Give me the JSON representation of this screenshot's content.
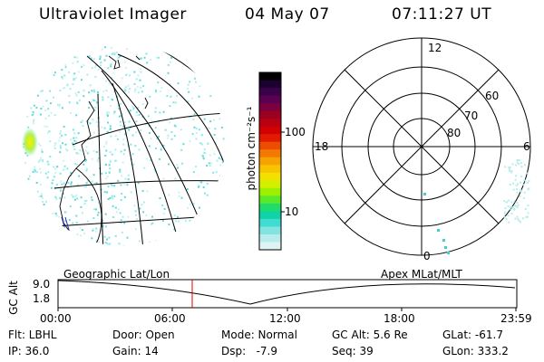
{
  "header": {
    "instrument": "Ultraviolet Imager",
    "date": "04 May 07",
    "time": "07:11:27 UT"
  },
  "colorbar": {
    "unit_label": "photon cm⁻²s⁻¹",
    "ticks": [
      "100",
      "10"
    ],
    "colors": [
      "#000000",
      "#1b0030",
      "#3a0048",
      "#5a0050",
      "#7a0040",
      "#9a0020",
      "#b80010",
      "#d20000",
      "#e21a00",
      "#ee4c00",
      "#f27a00",
      "#f6a200",
      "#f8c400",
      "#f2e000",
      "#d2f000",
      "#9cf000",
      "#5ae82a",
      "#20dc6a",
      "#10d4a8",
      "#40dcd0",
      "#80e4e0",
      "#b8ecec",
      "#dcf4f4"
    ]
  },
  "polar": {
    "mlt_labels": {
      "top": "12",
      "left": "18",
      "right": "6",
      "bottom": "0"
    },
    "mlat_labels": [
      "60",
      "70",
      "80"
    ]
  },
  "timeline": {
    "left_caption": "Geographic Lat/Lon",
    "right_caption": "Apex MLat/MLT",
    "axis_label": "GC Alt",
    "y_ticks": [
      "9.0",
      "1.8"
    ],
    "x_ticks": [
      "00:00",
      "06:00",
      "12:00",
      "18:00",
      "23:59"
    ],
    "marker_time": "07:11"
  },
  "footer": {
    "filter": "Flt: LBHL",
    "ip": "IP: 36.0",
    "door": "Door: Open",
    "gain": "Gain: 14",
    "mode": "Mode: Normal",
    "dsp": "Dsp:   -7.9",
    "gc_alt": "GC Alt: 5.6 Re",
    "seq": "Seq: 39",
    "glat": "GLat: -61.7",
    "glon": "GLon: 333.2"
  },
  "colors": {
    "marker": "#e00000",
    "speckle": "#7fe6e6",
    "hotspot": "#f0f000"
  }
}
